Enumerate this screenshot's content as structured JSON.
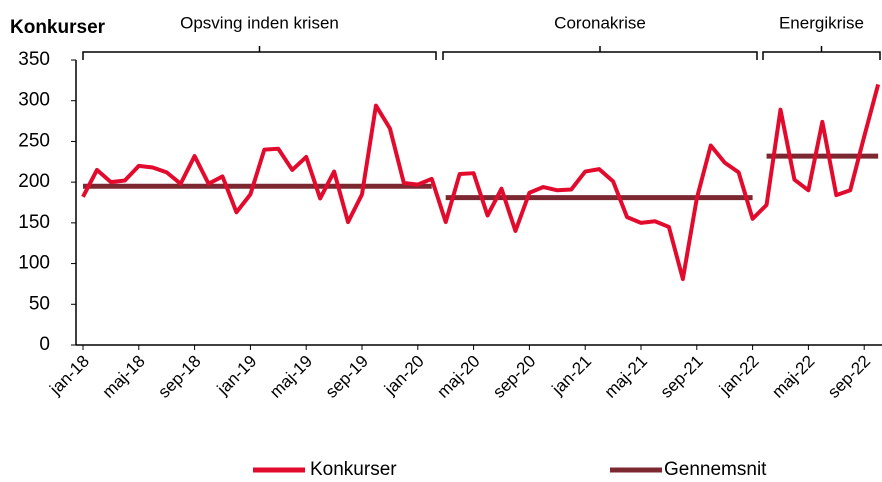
{
  "chart_data": {
    "type": "line",
    "y_axis_label": "Konkurser",
    "annotations": [
      "Opsving inden krisen",
      "Coronakrise",
      "Energikrise"
    ],
    "categories": [
      "jan-18",
      null,
      null,
      null,
      "maj-18",
      null,
      null,
      null,
      "sep-18",
      null,
      null,
      null,
      "jan-19",
      null,
      null,
      null,
      "maj-19",
      null,
      null,
      null,
      "sep-19",
      null,
      null,
      null,
      "jan-20",
      null,
      null,
      null,
      "maj-20",
      null,
      null,
      null,
      "sep-20",
      null,
      null,
      null,
      "jan-21",
      null,
      null,
      null,
      "maj-21",
      null,
      null,
      null,
      "sep-21",
      null,
      null,
      null,
      "jan-22",
      null,
      null,
      null,
      "maj-22",
      null,
      null,
      null,
      "sep-22",
      null
    ],
    "series": [
      {
        "name": "Konkurser",
        "color": "#e30b2d",
        "values": [
          182,
          215,
          200,
          202,
          220,
          218,
          212,
          198,
          232,
          198,
          207,
          163,
          185,
          240,
          241,
          215,
          231,
          180,
          213,
          151,
          185,
          294,
          266,
          199,
          197,
          204,
          151,
          210,
          211,
          159,
          192,
          140,
          187,
          194,
          190,
          191,
          213,
          216,
          201,
          157,
          150,
          152,
          145,
          81,
          180,
          245,
          224,
          212,
          155,
          172,
          289,
          203,
          190,
          274,
          184,
          190,
          256,
          320
        ]
      },
      {
        "name": "Gennemsnit",
        "color": "#7b2831",
        "values": [
          195,
          195,
          195,
          195,
          195,
          195,
          195,
          195,
          195,
          195,
          195,
          195,
          195,
          195,
          195,
          195,
          195,
          195,
          195,
          195,
          195,
          195,
          195,
          195,
          195,
          195,
          181,
          181,
          181,
          181,
          181,
          181,
          181,
          181,
          181,
          181,
          181,
          181,
          181,
          181,
          181,
          181,
          181,
          181,
          181,
          181,
          181,
          181,
          181,
          232,
          232,
          232,
          232,
          232,
          232,
          232,
          232,
          232
        ]
      }
    ],
    "ylim": [
      0,
      350
    ],
    "yticks": [
      0,
      50,
      100,
      150,
      200,
      250,
      300,
      350
    ],
    "grid": false,
    "legend": "bottom"
  }
}
